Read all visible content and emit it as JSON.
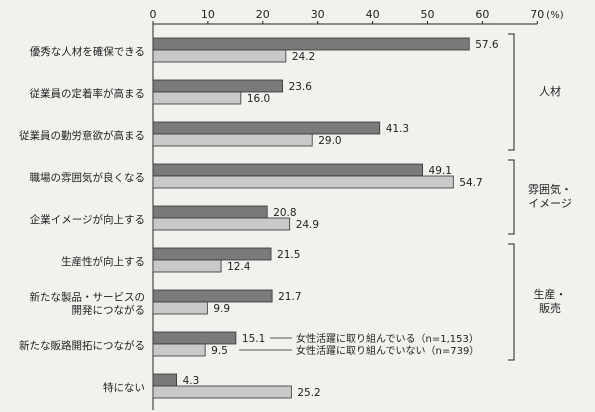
{
  "chart_data": {
    "type": "bar",
    "orientation": "horizontal",
    "x_unit": "(%)",
    "xlim": [
      0,
      70
    ],
    "x_ticks": [
      0,
      10,
      20,
      30,
      40,
      50,
      60,
      70
    ],
    "grid": false,
    "categories": [
      "優秀な人材を確保できる",
      "従業員の定着率が高まる",
      "従業員の勤労意欲が高まる",
      "職場の雰囲気が良くなる",
      "企業イメージが向上する",
      "生産性が向上する",
      "新たな製品・サービスの\n開発につながる",
      "新たな販路開拓につながる",
      "特にない"
    ],
    "series": [
      {
        "name": "女性活躍に取り組んでいる（n=1,153）",
        "color": "#7a7a7a",
        "values": [
          57.6,
          23.6,
          41.3,
          49.1,
          20.8,
          21.5,
          21.7,
          15.1,
          4.3
        ]
      },
      {
        "name": "女性活躍に取り組んでいない（n=739）",
        "color": "#c9c9c9",
        "values": [
          24.2,
          16.0,
          29.0,
          54.7,
          24.9,
          12.4,
          9.9,
          9.5,
          25.2
        ]
      }
    ],
    "groups": [
      {
        "label": "人材",
        "categories": [
          0,
          2
        ]
      },
      {
        "label": "雰囲気・\nイメージ",
        "categories": [
          3,
          4
        ]
      },
      {
        "label": "生産・\n販売",
        "categories": [
          5,
          7
        ]
      }
    ],
    "legend_placement": "inline, beside 新たな販路開拓につながる bars"
  }
}
